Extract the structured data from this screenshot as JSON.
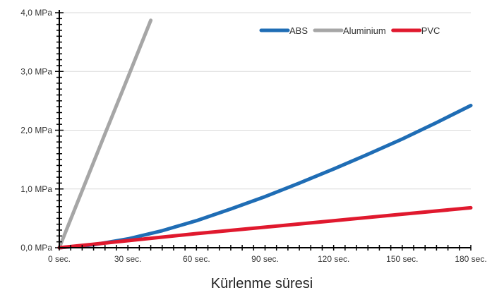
{
  "chart_data": {
    "type": "line",
    "title": "",
    "xlabel": "Kürlenme süresi",
    "ylabel": "",
    "xlim": [
      0,
      180
    ],
    "ylim": [
      0,
      4.0
    ],
    "x_ticks": [
      0,
      30,
      60,
      90,
      120,
      150,
      180
    ],
    "x_tick_labels": [
      "0 sec.",
      "30 sec.",
      "60 sec.",
      "90 sec.",
      "120 sec.",
      "150 sec.",
      "180 sec."
    ],
    "y_ticks": [
      0,
      1,
      2,
      3,
      4
    ],
    "y_tick_labels": [
      "0,0 MPa",
      "1,0 MPa",
      "2,0 MPa",
      "3,0 MPa",
      "4,0 MPa"
    ],
    "grid": "horizontal",
    "legend_position": "top-right",
    "series": [
      {
        "name": "ABS",
        "color": "#1f6db5",
        "x": [
          0,
          15,
          30,
          45,
          60,
          75,
          90,
          105,
          120,
          135,
          150,
          165,
          180
        ],
        "y": [
          0,
          0.05,
          0.15,
          0.29,
          0.46,
          0.66,
          0.87,
          1.1,
          1.34,
          1.59,
          1.85,
          2.13,
          2.42
        ]
      },
      {
        "name": "Aluminium",
        "color": "#a6a6a6",
        "x": [
          0,
          10,
          20,
          30,
          40
        ],
        "y": [
          0,
          0.97,
          1.94,
          2.9,
          3.87
        ]
      },
      {
        "name": "PVC",
        "color": "#e0192e",
        "x": [
          0,
          30,
          60,
          90,
          120,
          150,
          180
        ],
        "y": [
          0,
          0.12,
          0.24,
          0.35,
          0.46,
          0.57,
          0.68
        ]
      }
    ]
  }
}
